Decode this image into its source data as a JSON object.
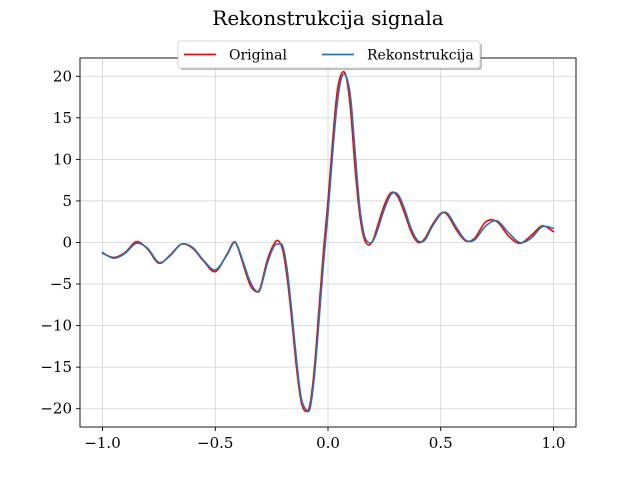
{
  "chart_data": {
    "type": "line",
    "title": "Rekonstrukcija signala",
    "xlabel": "",
    "ylabel": "",
    "xlim": [
      -1.1,
      1.1
    ],
    "ylim": [
      -22.2,
      22.2
    ],
    "x_ticks": [
      -1.0,
      -0.5,
      0.0,
      0.5,
      1.0
    ],
    "x_tick_labels": [
      "−1.0",
      "−0.5",
      "0.0",
      "0.5",
      "1.0"
    ],
    "y_ticks": [
      -20,
      -15,
      -10,
      -5,
      0,
      5,
      10,
      15,
      20
    ],
    "y_tick_labels": [
      "−20",
      "−15",
      "−10",
      "−5",
      "0",
      "5",
      "10",
      "15",
      "20"
    ],
    "grid": true,
    "legend_position": "top-center",
    "series": [
      {
        "name": "Original",
        "color": "#ff0000",
        "x": [
          -1.0,
          -0.95,
          -0.9,
          -0.85,
          -0.8,
          -0.75,
          -0.7,
          -0.65,
          -0.6,
          -0.55,
          -0.5,
          -0.45,
          -0.42,
          -0.4,
          -0.35,
          -0.32,
          -0.3,
          -0.27,
          -0.24,
          -0.22,
          -0.2,
          -0.18,
          -0.16,
          -0.14,
          -0.12,
          -0.1,
          -0.08,
          -0.06,
          -0.04,
          -0.02,
          0.0,
          0.02,
          0.04,
          0.06,
          0.08,
          0.1,
          0.12,
          0.14,
          0.16,
          0.18,
          0.2,
          0.22,
          0.25,
          0.28,
          0.31,
          0.34,
          0.37,
          0.4,
          0.43,
          0.46,
          0.5,
          0.53,
          0.57,
          0.61,
          0.65,
          0.7,
          0.75,
          0.8,
          0.85,
          0.9,
          0.95,
          1.0
        ],
        "y": [
          -1.3,
          -1.8,
          -1.2,
          0.1,
          -0.8,
          -2.5,
          -1.5,
          -0.2,
          -0.7,
          -2.3,
          -3.5,
          -1.5,
          0.0,
          -0.6,
          -4.8,
          -5.9,
          -5.4,
          -2.2,
          -0.2,
          0.2,
          -1.0,
          -4.5,
          -9.5,
          -15.0,
          -19.0,
          -20.3,
          -19.5,
          -15.0,
          -8.0,
          -1.0,
          5.0,
          12.0,
          18.0,
          20.3,
          20.0,
          16.0,
          9.0,
          3.5,
          0.5,
          -0.3,
          0.3,
          2.0,
          4.5,
          6.0,
          5.5,
          3.5,
          1.2,
          0.0,
          0.5,
          2.0,
          3.5,
          3.3,
          1.5,
          0.2,
          0.5,
          2.5,
          2.5,
          0.8,
          -0.1,
          0.8,
          2.0,
          1.3
        ]
      },
      {
        "name": "Rekonstrukcija",
        "color": "#1f77b4",
        "x": [
          -1.0,
          -0.95,
          -0.9,
          -0.85,
          -0.8,
          -0.75,
          -0.7,
          -0.65,
          -0.6,
          -0.55,
          -0.5,
          -0.45,
          -0.42,
          -0.4,
          -0.35,
          -0.32,
          -0.3,
          -0.27,
          -0.24,
          -0.22,
          -0.2,
          -0.18,
          -0.16,
          -0.14,
          -0.12,
          -0.1,
          -0.08,
          -0.06,
          -0.04,
          -0.02,
          0.0,
          0.02,
          0.04,
          0.06,
          0.08,
          0.1,
          0.12,
          0.14,
          0.16,
          0.18,
          0.2,
          0.22,
          0.25,
          0.28,
          0.31,
          0.34,
          0.37,
          0.4,
          0.43,
          0.46,
          0.5,
          0.53,
          0.57,
          0.61,
          0.65,
          0.7,
          0.75,
          0.8,
          0.85,
          0.9,
          0.95,
          1.0
        ],
        "y": [
          -1.2,
          -1.9,
          -1.3,
          -0.1,
          -0.7,
          -2.4,
          -1.6,
          -0.2,
          -0.6,
          -2.2,
          -3.3,
          -1.6,
          -0.1,
          -0.5,
          -4.4,
          -5.8,
          -5.6,
          -2.6,
          -0.5,
          -0.2,
          -0.5,
          -3.5,
          -8.5,
          -14.0,
          -18.5,
          -20.0,
          -20.0,
          -16.0,
          -9.5,
          -2.5,
          3.5,
          10.5,
          16.5,
          19.8,
          20.0,
          17.5,
          11.0,
          4.5,
          1.0,
          0.0,
          0.2,
          1.5,
          4.0,
          5.8,
          5.8,
          4.0,
          1.6,
          0.2,
          0.3,
          1.8,
          3.4,
          3.5,
          1.8,
          0.3,
          0.3,
          2.0,
          2.6,
          1.2,
          0.0,
          0.5,
          1.9,
          1.7
        ]
      }
    ]
  }
}
